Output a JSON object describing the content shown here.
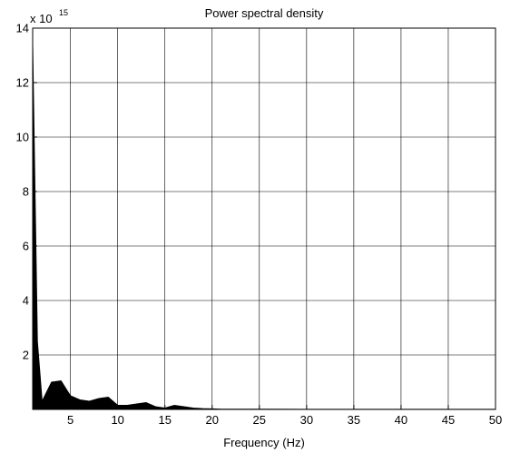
{
  "chart_data": {
    "type": "area",
    "title": "Power spectral density",
    "xlabel": "Frequency (Hz)",
    "ylabel": "",
    "exponent_label": {
      "prefix": "x 10",
      "power": "15"
    },
    "xlim": [
      1,
      50
    ],
    "ylim": [
      0,
      14
    ],
    "x_ticks": [
      5,
      10,
      15,
      20,
      25,
      30,
      35,
      40,
      45,
      50
    ],
    "y_ticks": [
      2,
      4,
      6,
      8,
      10,
      12,
      14
    ],
    "grid": true,
    "legend": "none",
    "fill_color": "#000000",
    "series": [
      {
        "x": [
          1,
          1.5,
          2,
          3,
          4,
          5,
          6,
          7,
          8,
          9,
          10,
          11,
          12,
          13,
          14,
          15,
          16,
          17,
          18,
          19,
          20,
          21,
          22,
          25,
          30,
          35,
          40,
          45,
          50
        ],
        "values": [
          13.4,
          2.5,
          0.3,
          1.0,
          1.05,
          0.5,
          0.35,
          0.3,
          0.4,
          0.45,
          0.15,
          0.15,
          0.2,
          0.25,
          0.1,
          0.05,
          0.15,
          0.1,
          0.05,
          0.03,
          0.02,
          0.01,
          0.01,
          0.01,
          0.005,
          0.005,
          0.005,
          0.005,
          0.005
        ]
      }
    ]
  }
}
